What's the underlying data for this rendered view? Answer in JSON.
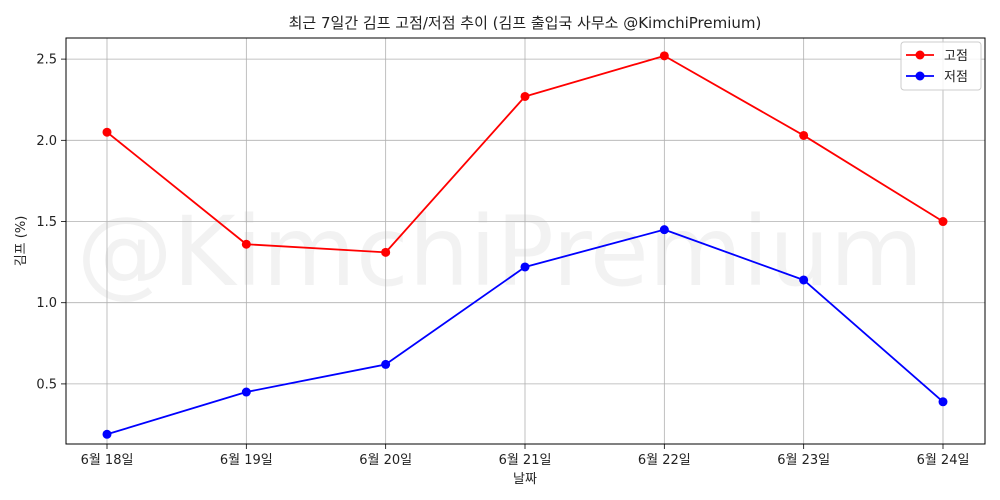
{
  "chart_data": {
    "type": "line",
    "title": "최근 7일간 김프 고점/저점 추이 (김프 출입국 사무소 @KimchiPremium)",
    "xlabel": "날짜",
    "ylabel": "김프 (%)",
    "categories": [
      "6월 18일",
      "6월 19일",
      "6월 20일",
      "6월 21일",
      "6월 22일",
      "6월 23일",
      "6월 24일"
    ],
    "yticks": [
      "0.5",
      "1.0",
      "1.5",
      "2.0",
      "2.5"
    ],
    "ylim": [
      0.13,
      2.63
    ],
    "grid": true,
    "legend_position": "top-right",
    "watermark": "@KimchiPremium",
    "series": [
      {
        "name": "고점",
        "color": "#ff0000",
        "values": [
          2.05,
          1.36,
          1.31,
          2.27,
          2.52,
          2.03,
          1.5
        ]
      },
      {
        "name": "저점",
        "color": "#0000ff",
        "values": [
          0.19,
          0.45,
          0.62,
          1.22,
          1.45,
          1.14,
          0.39
        ]
      }
    ]
  }
}
